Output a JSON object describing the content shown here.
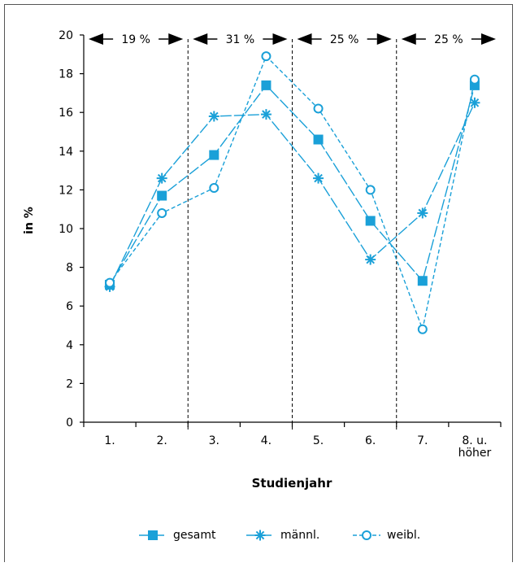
{
  "chart_data": {
    "type": "line",
    "title": "",
    "xlabel": "Studienjahr",
    "ylabel": "in %",
    "ylim": [
      0,
      20
    ],
    "yticks": [
      "0",
      "2",
      "4",
      "6",
      "8",
      "10",
      "12",
      "14",
      "16",
      "18",
      "20"
    ],
    "categories": [
      "1.",
      "2.",
      "3.",
      "4.",
      "5.",
      "6.",
      "7.",
      "8. u. höher"
    ],
    "category_lines": [
      [
        "1."
      ],
      [
        "2."
      ],
      [
        "3."
      ],
      [
        "4."
      ],
      [
        "5."
      ],
      [
        "6."
      ],
      [
        "7."
      ],
      [
        "8. u.",
        "höher"
      ]
    ],
    "series": [
      {
        "name": "gesamt",
        "marker": "square",
        "dash": "long",
        "values": [
          7.1,
          11.7,
          13.8,
          17.4,
          14.6,
          10.4,
          7.3,
          17.4
        ]
      },
      {
        "name": "männl.",
        "marker": "asterisk",
        "dash": "long",
        "values": [
          7.0,
          12.6,
          15.8,
          15.9,
          12.6,
          8.4,
          10.8,
          16.5
        ]
      },
      {
        "name": "weibl.",
        "marker": "circle",
        "dash": "short",
        "values": [
          7.2,
          10.8,
          12.1,
          18.9,
          16.2,
          12.0,
          4.8,
          17.7
        ]
      }
    ],
    "period_shares": [
      {
        "label": "19 %",
        "from_category": 0,
        "to_category": 1
      },
      {
        "label": "31 %",
        "from_category": 2,
        "to_category": 3
      },
      {
        "label": "25 %",
        "from_category": 4,
        "to_category": 5
      },
      {
        "label": "25 %",
        "from_category": 6,
        "to_category": 7
      }
    ],
    "grid": false,
    "legend_position": "bottom",
    "colors": {
      "series": "#1aa0d8",
      "axis": "#000000",
      "frame": "#555555"
    }
  }
}
